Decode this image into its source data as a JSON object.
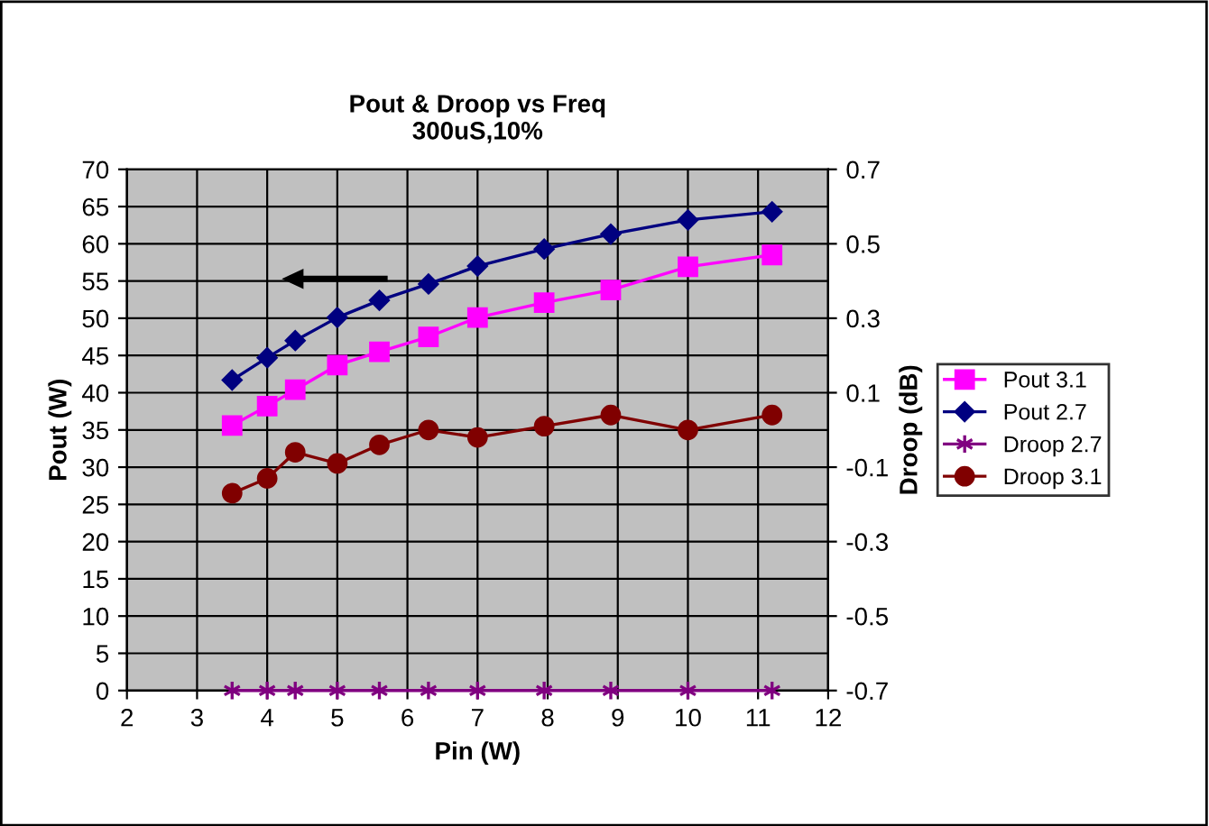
{
  "chart_data": {
    "type": "line",
    "title": "Pout & Droop vs Freq\n300uS,10%",
    "xlabel": "Pin (W)",
    "ylabel": "Pout (W)",
    "y2label": "Droop (dB)",
    "x": [
      3.5,
      4.0,
      4.4,
      5.0,
      5.6,
      6.3,
      7.0,
      7.95,
      8.9,
      10.0,
      11.2
    ],
    "series": [
      {
        "name": "Pout 3.1",
        "color": "#ff00ff",
        "marker": "square",
        "values": [
          35.6,
          38.2,
          40.4,
          43.7,
          45.5,
          47.5,
          50.1,
          52.1,
          53.8,
          56.9,
          58.5
        ]
      },
      {
        "name": "Pout 2.7",
        "color": "#000080",
        "marker": "diamond",
        "values": [
          41.7,
          44.7,
          47.0,
          50.1,
          52.4,
          54.6,
          57.0,
          59.3,
          61.3,
          63.2,
          64.3
        ]
      },
      {
        "name": "Droop 2.7",
        "color": "#800080",
        "marker": "cross",
        "axis": "y2",
        "values": [
          -0.7,
          -0.7,
          -0.7,
          -0.7,
          -0.7,
          -0.7,
          -0.7,
          -0.7,
          -0.7,
          -0.7,
          -0.7
        ]
      },
      {
        "name": "Droop 3.1",
        "color": "#800000",
        "marker": "circle",
        "axis": "y2",
        "values": [
          -0.17,
          -0.13,
          -0.06,
          -0.09,
          -0.04,
          0.0,
          -0.02,
          0.01,
          0.04,
          0.0,
          0.04
        ]
      }
    ],
    "xlim": [
      2,
      12
    ],
    "xticks": [
      2,
      3,
      4,
      5,
      6,
      7,
      8,
      9,
      10,
      11,
      12
    ],
    "ylim": [
      0,
      70
    ],
    "yticks": [
      0,
      5,
      10,
      15,
      20,
      25,
      30,
      35,
      40,
      45,
      50,
      55,
      60,
      65,
      70
    ],
    "y2lim": [
      -0.7,
      0.7
    ],
    "y2ticks": [
      -0.7,
      -0.5,
      -0.3,
      -0.1,
      0.1,
      0.3,
      0.5,
      0.7
    ],
    "grid": true,
    "legend": "right",
    "line_style": "solid"
  }
}
